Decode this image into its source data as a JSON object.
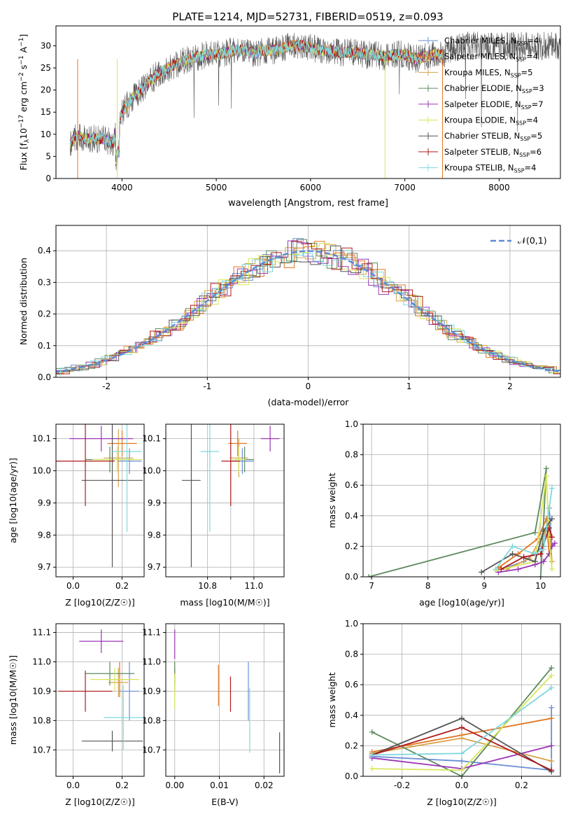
{
  "figure_title": "PLATE=1214, MJD=52731, FIBERID=0519, z=0.093",
  "series": [
    {
      "name": "Chabrier MILES",
      "nssp": "4",
      "color": "#6a8fd6"
    },
    {
      "name": "Salpeter MILES",
      "nssp": "4",
      "color": "#e1751e"
    },
    {
      "name": "Kroupa MILES",
      "nssp": "5",
      "color": "#d7a24a"
    },
    {
      "name": "Chabrier ELODIE",
      "nssp": "3",
      "color": "#5d8a5e"
    },
    {
      "name": "Salpeter ELODIE",
      "nssp": "7",
      "color": "#9b35b5"
    },
    {
      "name": "Kroupa ELODIE",
      "nssp": "4",
      "color": "#d8e65a"
    },
    {
      "name": "Chabrier STELIB",
      "nssp": "5",
      "color": "#555555"
    },
    {
      "name": "Salpeter STELIB",
      "nssp": "6",
      "color": "#b0191b"
    },
    {
      "name": "Kroupa STELIB",
      "nssp": "4",
      "color": "#7fd8dc"
    }
  ],
  "chart_data": [
    {
      "type": "line",
      "id": "spectrum",
      "xlabel": "wavelength [Angstrom, rest frame]",
      "ylabel": "Flux [f_λ 10^-17 erg cm^-2 s^-1 A^-1]",
      "xlim": [
        3300,
        8650
      ],
      "ylim": [
        0,
        34.5
      ],
      "xticks": [
        4000,
        5000,
        6000,
        7000,
        8000
      ],
      "yticks": [
        0,
        5,
        10,
        15,
        20,
        25,
        30
      ],
      "continuum": {
        "x": [
          3450,
          3500,
          3550,
          3600,
          3700,
          3800,
          3900,
          4000,
          4100,
          4200,
          4300,
          4400,
          4500,
          4600,
          4700,
          4800,
          4900,
          5000,
          5100,
          5200,
          5300,
          5400,
          5500,
          5600,
          5700,
          5800,
          5900,
          6000,
          6100,
          6200,
          6300,
          6400,
          6500,
          6600,
          6700,
          6800,
          6900,
          7000,
          7100,
          7200,
          7300,
          7400,
          7500,
          7600
        ],
        "y": [
          8,
          9,
          10,
          9,
          9,
          9,
          8,
          15,
          18,
          20,
          22,
          24,
          25,
          26,
          27,
          27.5,
          28,
          28,
          28.5,
          29,
          29,
          28,
          29,
          29,
          29.5,
          30,
          30,
          29.5,
          29,
          29,
          28.5,
          28.5,
          28.5,
          28,
          28,
          27.5,
          28,
          28,
          27,
          27.5,
          28,
          28,
          29.5,
          30
        ]
      },
      "observed_end": 8650,
      "model_end": 7400,
      "legend": "top-right",
      "grid": false
    },
    {
      "type": "bar",
      "id": "residuals",
      "step": true,
      "xlabel": "(data-model)/error",
      "ylabel": "Normed distribution",
      "xlim": [
        -2.5,
        2.5
      ],
      "ylim": [
        0,
        0.48
      ],
      "xticks": [
        -2,
        -1,
        0,
        1,
        2
      ],
      "yticks": [
        0,
        0.1,
        0.2,
        0.3,
        0.4
      ],
      "bin_width": 0.1,
      "reference_curve": "𝒩(0,1)",
      "legend": "top-right",
      "grid": true
    },
    {
      "type": "scatter",
      "id": "z_age",
      "errorbars": true,
      "xlabel": "Z [log10(Z/Z☉)]",
      "ylabel": "age [log10(age/yr)]",
      "xlim": [
        -0.07,
        0.29
      ],
      "ylim": [
        9.67,
        10.145
      ],
      "xticks": [
        0.0,
        0.2
      ],
      "yticks": [
        9.7,
        9.8,
        9.9,
        10.0,
        10.1
      ],
      "grid": true,
      "points": [
        {
          "x": 0.23,
          "y": 10.03,
          "xerr": 0.05,
          "yerr": 0.04
        },
        {
          "x": 0.2,
          "y": 10.085,
          "xerr": 0.06,
          "yerr": 0.04
        },
        {
          "x": 0.185,
          "y": 10.04,
          "xerr": 0.06,
          "yerr": 0.09
        },
        {
          "x": 0.15,
          "y": 10.035,
          "xerr": 0.1,
          "yerr": 0.04
        },
        {
          "x": 0.115,
          "y": 10.1,
          "xerr": 0.13,
          "yerr": 0.04
        },
        {
          "x": 0.18,
          "y": 10.035,
          "xerr": 0.1,
          "yerr": 0.04
        },
        {
          "x": 0.16,
          "y": 9.97,
          "xerr": 0.125,
          "yerr": 0.27
        },
        {
          "x": 0.05,
          "y": 10.03,
          "xerr": 0.12,
          "yerr": 0.14
        },
        {
          "x": 0.22,
          "y": 10.06,
          "xerr": 0.06,
          "yerr": 0.25
        }
      ]
    },
    {
      "type": "scatter",
      "id": "mass_age",
      "errorbars": true,
      "xlabel": "mass [log10(M/M☉)]",
      "ylabel": "",
      "xlim": [
        10.62,
        11.13
      ],
      "ylim": [
        9.67,
        10.145
      ],
      "xticks": [
        10.8,
        10.9,
        11.0
      ],
      "xticklabels": [
        "10.8",
        "",
        "11.0"
      ],
      "yticks": [
        9.7,
        9.8,
        9.9,
        10.0,
        10.1
      ],
      "grid": true,
      "points": [
        {
          "x": 10.95,
          "y": 10.03,
          "xerr": 0.05,
          "yerr": 0.04
        },
        {
          "x": 10.93,
          "y": 10.085,
          "xerr": 0.04,
          "yerr": 0.04
        },
        {
          "x": 10.935,
          "y": 10.04,
          "xerr": 0.04,
          "yerr": 0.06
        },
        {
          "x": 10.96,
          "y": 10.035,
          "xerr": 0.04,
          "yerr": 0.04
        },
        {
          "x": 11.07,
          "y": 10.1,
          "xerr": 0.04,
          "yerr": 0.04
        },
        {
          "x": 10.935,
          "y": 10.035,
          "xerr": 0.03,
          "yerr": 0.04
        },
        {
          "x": 10.73,
          "y": 9.97,
          "xerr": 0.04,
          "yerr": 0.27
        },
        {
          "x": 10.9,
          "y": 10.03,
          "xerr": 0.04,
          "yerr": 0.14
        },
        {
          "x": 10.81,
          "y": 10.06,
          "xerr": 0.04,
          "yerr": 0.25
        }
      ]
    },
    {
      "type": "line",
      "id": "age_massweight",
      "markers": "+",
      "xlabel": "age [log10(age/yr)]",
      "ylabel": "mass weight",
      "xlim": [
        6.85,
        10.35
      ],
      "ylim": [
        0,
        1
      ],
      "xticks": [
        7,
        8,
        9,
        10
      ],
      "yticks": [
        0,
        0.2,
        0.4,
        0.6,
        0.8,
        1.0
      ],
      "grid": true,
      "lines": [
        {
          "x": [
            9.3,
            9.7,
            10.05,
            10.15,
            10.2
          ],
          "y": [
            0.05,
            0.1,
            0.2,
            0.45,
            0.2
          ]
        },
        {
          "x": [
            9.25,
            9.6,
            9.95,
            10.1,
            10.15
          ],
          "y": [
            0.06,
            0.15,
            0.25,
            0.38,
            0.15
          ]
        },
        {
          "x": [
            9.4,
            9.8,
            10.05,
            10.15,
            10.2
          ],
          "y": [
            0.05,
            0.12,
            0.28,
            0.35,
            0.1
          ]
        },
        {
          "x": [
            6.95,
            9.9,
            10.1,
            10.0
          ],
          "y": [
            0,
            0.29,
            0.71,
            0.0
          ]
        },
        {
          "x": [
            9.25,
            9.6,
            9.9,
            10.05,
            10.15,
            10.2,
            10.25
          ],
          "y": [
            0.03,
            0.05,
            0.08,
            0.1,
            0.15,
            0.2,
            0.22
          ]
        },
        {
          "x": [
            9.2,
            9.9,
            10.1,
            10.15,
            10.2
          ],
          "y": [
            0.04,
            0.1,
            0.66,
            0.25,
            0.05
          ]
        },
        {
          "x": [
            8.95,
            9.5,
            9.9,
            10.05,
            10.2
          ],
          "y": [
            0.03,
            0.15,
            0.1,
            0.3,
            0.38
          ]
        },
        {
          "x": [
            9.3,
            9.7,
            10.0,
            10.15,
            10.2
          ],
          "y": [
            0.05,
            0.13,
            0.15,
            0.32,
            0.26
          ]
        },
        {
          "x": [
            9.2,
            9.5,
            9.9,
            10.05,
            10.2
          ],
          "y": [
            0.05,
            0.2,
            0.15,
            0.18,
            0.58
          ]
        }
      ]
    },
    {
      "type": "scatter",
      "id": "z_mass",
      "errorbars": true,
      "xlabel": "Z [log10(Z/Z☉)]",
      "ylabel": "mass [log10(M/M☉)]",
      "xlim": [
        -0.07,
        0.29
      ],
      "ylim": [
        10.61,
        11.13
      ],
      "xticks": [
        0.0,
        0.2
      ],
      "yticks": [
        10.7,
        10.8,
        10.9,
        11.0,
        11.1
      ],
      "grid": true,
      "points": [
        {
          "x": 0.23,
          "y": 10.9,
          "xerr": 0.04,
          "yerr": 0.1
        },
        {
          "x": 0.19,
          "y": 10.94,
          "xerr": 0.05,
          "yerr": 0.06
        },
        {
          "x": 0.185,
          "y": 10.93,
          "xerr": 0.04,
          "yerr": 0.05
        },
        {
          "x": 0.15,
          "y": 10.96,
          "xerr": 0.1,
          "yerr": 0.04
        },
        {
          "x": 0.115,
          "y": 11.07,
          "xerr": 0.09,
          "yerr": 0.04
        },
        {
          "x": 0.17,
          "y": 10.94,
          "xerr": 0.1,
          "yerr": 0.04
        },
        {
          "x": 0.16,
          "y": 10.73,
          "xerr": 0.125,
          "yerr": 0.035
        },
        {
          "x": 0.05,
          "y": 10.9,
          "xerr": 0.11,
          "yerr": 0.07
        },
        {
          "x": 0.205,
          "y": 10.81,
          "xerr": 0.08,
          "yerr": 0.11
        }
      ]
    },
    {
      "type": "scatter",
      "id": "ebv_mass",
      "errorbars": true,
      "xlabel": "E(B-V)",
      "ylabel": "",
      "xlim": [
        -0.002,
        0.0245
      ],
      "ylim": [
        10.61,
        11.13
      ],
      "xticks": [
        0.0,
        0.01,
        0.02
      ],
      "yticks": [
        10.7,
        10.8,
        10.9,
        11.0,
        11.1
      ],
      "grid": true,
      "points": [
        {
          "x": 0.0165,
          "y": 10.9,
          "xerr": 0,
          "yerr": 0.1
        },
        {
          "x": 0.0098,
          "y": 10.92,
          "xerr": 0,
          "yerr": 0.07
        },
        {
          "x": 0.0,
          "y": 10.94,
          "xerr": 0,
          "yerr": 0.04
        },
        {
          "x": 0.0,
          "y": 10.96,
          "xerr": 0,
          "yerr": 0.04
        },
        {
          "x": 0.0,
          "y": 11.06,
          "xerr": 0,
          "yerr": 0.05
        },
        {
          "x": 0.0,
          "y": 10.9,
          "xerr": 0,
          "yerr": 0.06
        },
        {
          "x": 0.0235,
          "y": 10.69,
          "xerr": 0,
          "yerr": 0.07
        },
        {
          "x": 0.0125,
          "y": 10.89,
          "xerr": 0,
          "yerr": 0.06
        },
        {
          "x": 0.0168,
          "y": 10.8,
          "xerr": 0,
          "yerr": 0.11
        }
      ]
    },
    {
      "type": "line",
      "id": "z_massweight",
      "markers": "+",
      "xlabel": "Z [log10(Z/Z☉)]",
      "ylabel": "mass weight",
      "xlim": [
        -0.33,
        0.33
      ],
      "ylim": [
        0,
        1
      ],
      "xticks": [
        -0.2,
        0.0,
        0.2
      ],
      "yticks": [
        0,
        0.2,
        0.4,
        0.6,
        0.8,
        1.0
      ],
      "grid": true,
      "lines": [
        {
          "x": [
            -0.3,
            0.0,
            0.3,
            0.3
          ],
          "y": [
            0.13,
            0.1,
            0.04,
            0.45
          ]
        },
        {
          "x": [
            -0.3,
            0.0,
            0.3
          ],
          "y": [
            0.16,
            0.27,
            0.38
          ]
        },
        {
          "x": [
            -0.3,
            0.0,
            0.3
          ],
          "y": [
            0.15,
            0.25,
            0.1
          ]
        },
        {
          "x": [
            -0.3,
            0.0,
            0.3
          ],
          "y": [
            0.29,
            0.0,
            0.71
          ]
        },
        {
          "x": [
            -0.3,
            0.0,
            0.3
          ],
          "y": [
            0.12,
            0.05,
            0.2
          ]
        },
        {
          "x": [
            -0.3,
            0.0,
            0.3
          ],
          "y": [
            0.05,
            0.04,
            0.66
          ]
        },
        {
          "x": [
            -0.3,
            0.0,
            0.3
          ],
          "y": [
            0.14,
            0.38,
            0.03
          ]
        },
        {
          "x": [
            -0.3,
            0.0,
            0.3
          ],
          "y": [
            0.14,
            0.32,
            0.04
          ]
        },
        {
          "x": [
            -0.3,
            0.0,
            0.3
          ],
          "y": [
            0.14,
            0.15,
            0.58
          ]
        }
      ]
    }
  ]
}
